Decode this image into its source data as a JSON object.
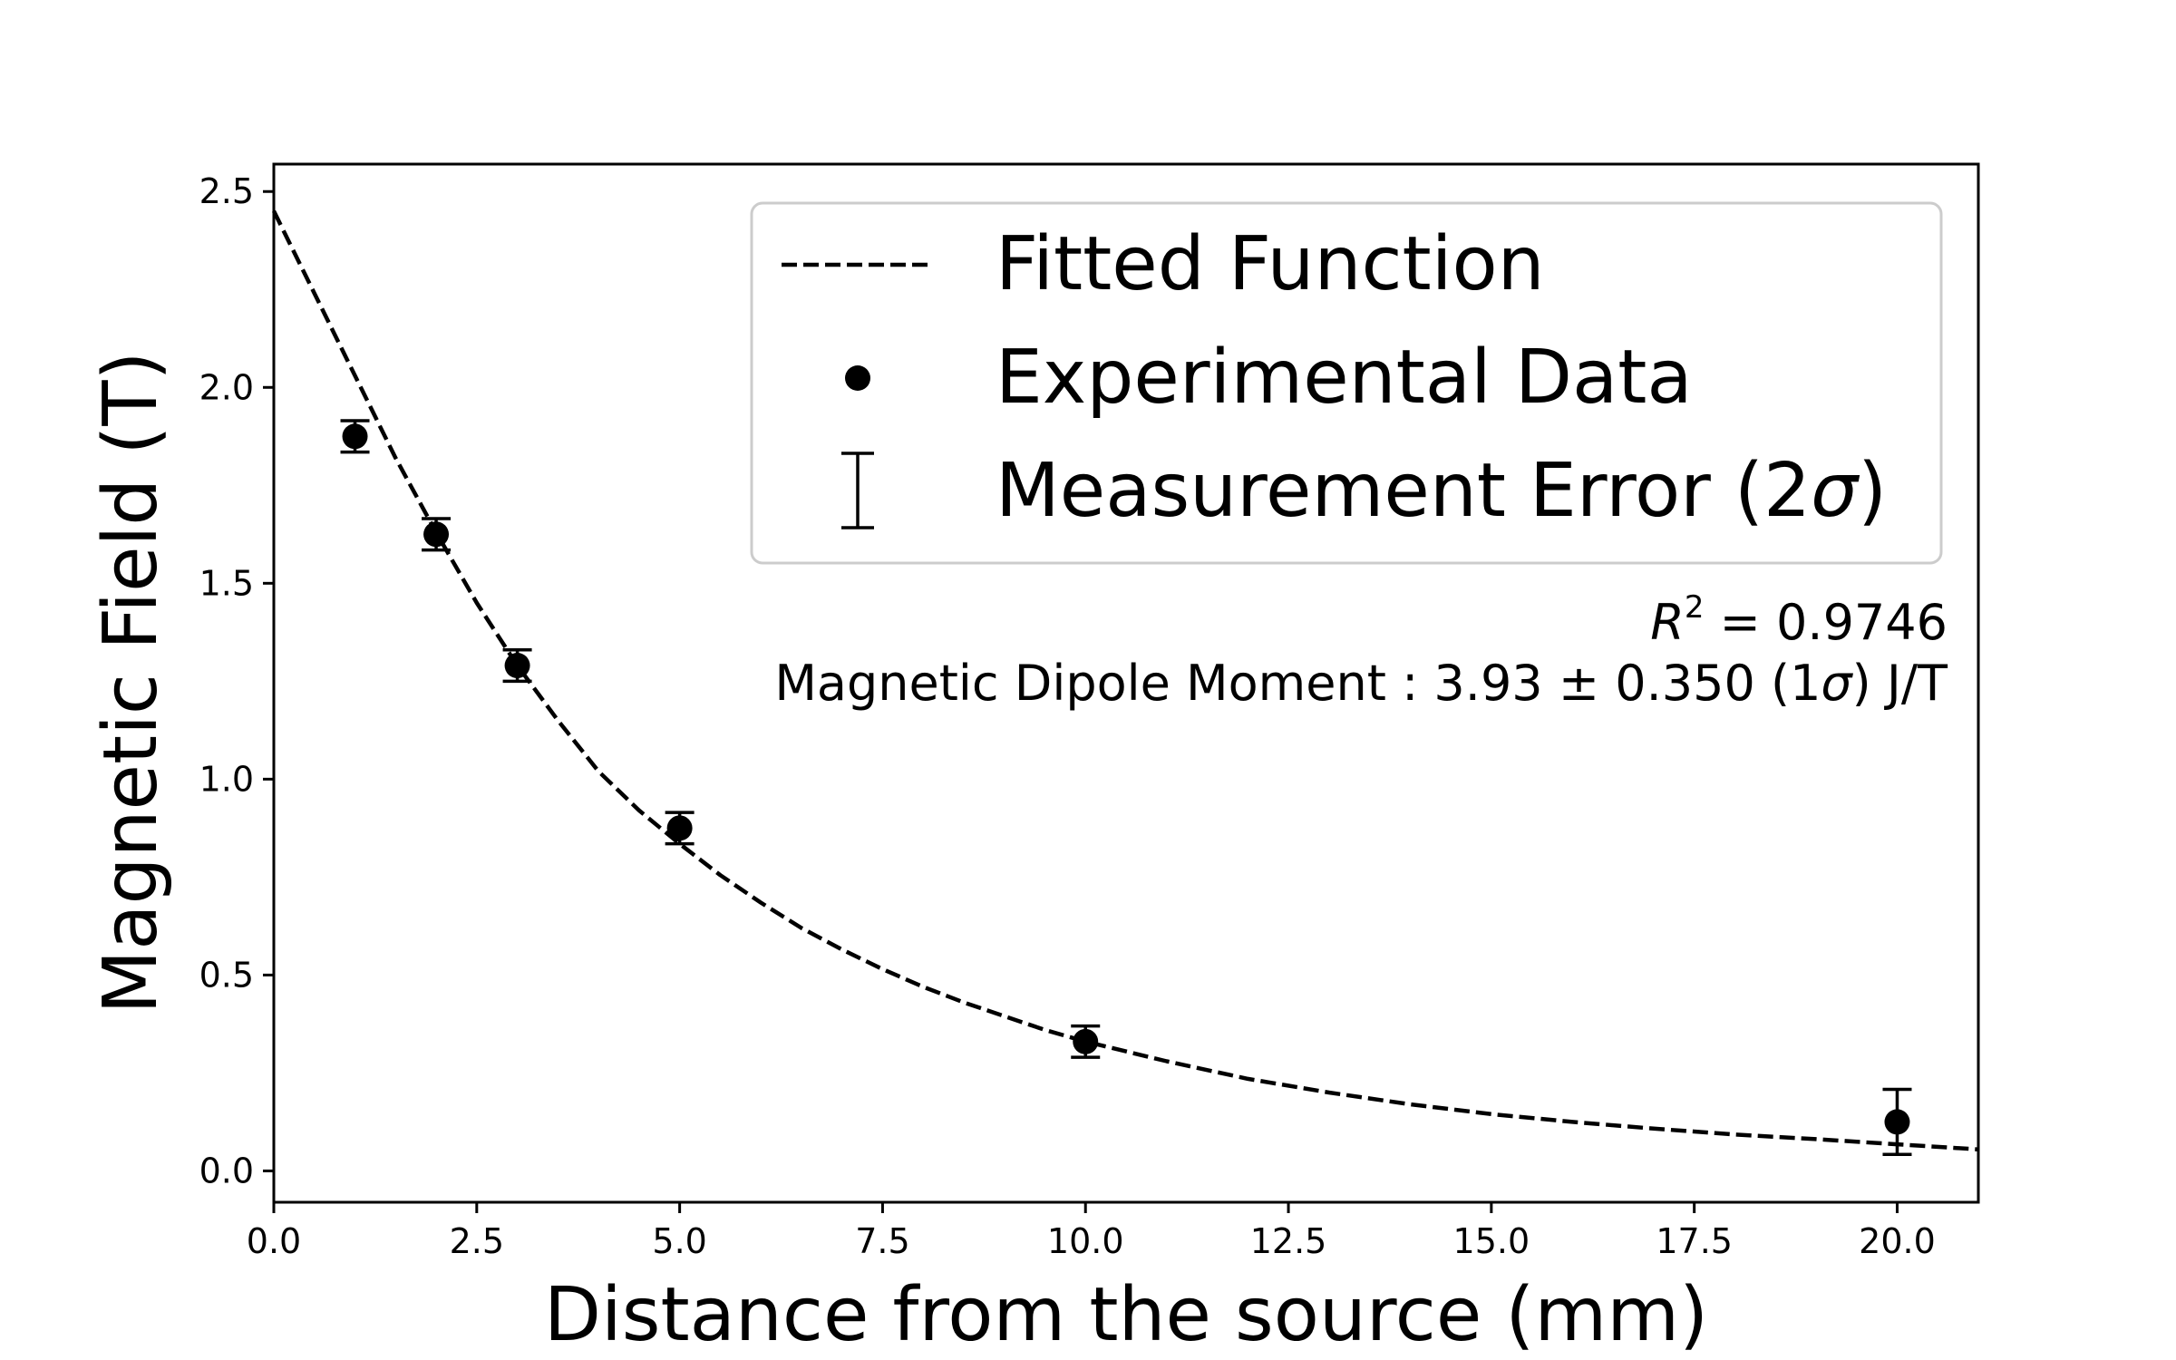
{
  "chart_data": {
    "type": "scatter",
    "title": "",
    "xlabel": "Distance from the source (mm)",
    "ylabel": "Magnetic Field (T)",
    "xlim": [
      0,
      21
    ],
    "ylim": [
      -0.08,
      2.57
    ],
    "x_ticks": [
      0.0,
      2.5,
      5.0,
      7.5,
      10.0,
      12.5,
      15.0,
      17.5,
      20.0
    ],
    "x_tick_labels": [
      "0.0",
      "2.5",
      "5.0",
      "7.5",
      "10.0",
      "12.5",
      "15.0",
      "17.5",
      "20.0"
    ],
    "y_ticks": [
      0.0,
      0.5,
      1.0,
      1.5,
      2.0,
      2.5
    ],
    "y_tick_labels": [
      "0.0",
      "0.5",
      "1.0",
      "1.5",
      "2.0",
      "2.5"
    ],
    "grid": false,
    "legend_position": "top-right",
    "colors": {
      "data": "#000000",
      "fit": "#000000",
      "background": "#ffffff"
    },
    "series": [
      {
        "name": "Experimental Data",
        "kind": "scatter",
        "x": [
          1,
          2,
          3,
          5,
          10,
          20
        ],
        "y": [
          1.875,
          1.625,
          1.29,
          0.875,
          0.33,
          0.125
        ],
        "error_2sigma": [
          0.04,
          0.04,
          0.04,
          0.04,
          0.04,
          0.083
        ]
      },
      {
        "name": "Fitted Function",
        "kind": "line",
        "style": "dashed",
        "x": [
          0,
          0.5,
          1,
          1.5,
          2,
          2.5,
          3,
          3.5,
          4,
          4.5,
          5,
          5.5,
          6,
          6.5,
          7,
          7.5,
          8,
          8.5,
          9,
          9.5,
          10,
          11,
          12,
          13,
          14,
          15,
          16,
          17,
          18,
          19,
          20,
          21
        ],
        "y": [
          2.45,
          2.24,
          2.03,
          1.82,
          1.63,
          1.45,
          1.29,
          1.15,
          1.02,
          0.92,
          0.835,
          0.755,
          0.685,
          0.62,
          0.565,
          0.515,
          0.47,
          0.43,
          0.395,
          0.36,
          0.33,
          0.28,
          0.235,
          0.2,
          0.17,
          0.145,
          0.125,
          0.108,
          0.093,
          0.081,
          0.068,
          0.055
        ]
      }
    ],
    "legend": {
      "fit_label": "Fitted Function",
      "data_label": "Experimental Data",
      "error_label_prefix": "Measurement Error (2",
      "error_label_sigma": "σ",
      "error_label_suffix": ")"
    },
    "annotations": {
      "r2_symbol": "R",
      "r2_exponent": "2",
      "r2_value": " = 0.9746",
      "moment_prefix": "Magnetic Dipole Moment : 3.93 ± 0.350 (1",
      "moment_sigma": "σ",
      "moment_suffix": ") J/T"
    }
  }
}
